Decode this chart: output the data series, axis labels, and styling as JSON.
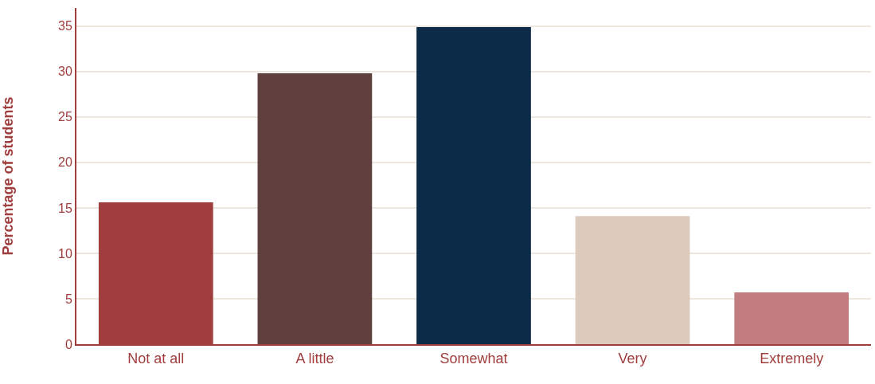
{
  "chart_data": {
    "type": "bar",
    "ylabel": "Percentage of students",
    "categories": [
      "Not at all",
      "A little",
      "Somewhat",
      "Very",
      "Extremely"
    ],
    "values": [
      15.6,
      29.8,
      34.9,
      14.1,
      5.7
    ],
    "colors": [
      "#a03e3e",
      "#5f3f3e",
      "#0c2b48",
      "#dccabc",
      "#c27e7e"
    ],
    "ylim": [
      0,
      37
    ],
    "yticks": [
      0,
      5,
      10,
      15,
      20,
      25,
      30,
      35
    ],
    "grid": "y"
  }
}
